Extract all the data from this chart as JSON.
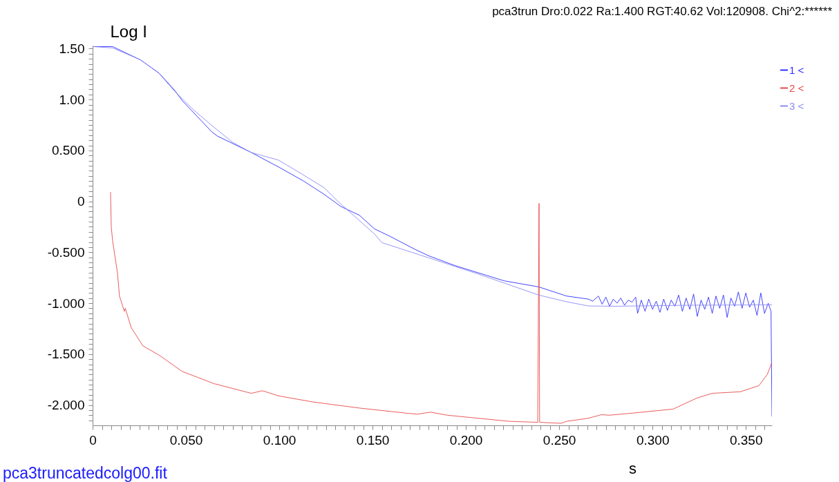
{
  "chart_data": {
    "type": "line",
    "title": "pca3trun  Dro:0.022  Ra:1.400  RGT:40.62  Vol:120908.  Chi^2:******",
    "ylabel": "Log I",
    "xlabel": "s",
    "annotations": [
      "pca3truncatedcolg00.fit"
    ],
    "legend": "top right",
    "grid": false,
    "marker": "none",
    "line_style": "solid",
    "xlim": [
      0,
      0.364
    ],
    "ylim": [
      -2.2,
      1.53
    ],
    "xticks": [
      {
        "value": 0,
        "label": "0"
      },
      {
        "value": 0.005,
        "label": null
      },
      {
        "value": 0.01,
        "label": null
      },
      {
        "value": 0.015,
        "label": null
      },
      {
        "value": 0.02,
        "label": null
      },
      {
        "value": 0.025,
        "label": null
      },
      {
        "value": 0.03,
        "label": null
      },
      {
        "value": 0.035,
        "label": null
      },
      {
        "value": 0.04,
        "label": null
      },
      {
        "value": 0.045,
        "label": null
      },
      {
        "value": 0.05,
        "label": "0.050"
      },
      {
        "value": 0.055,
        "label": null
      },
      {
        "value": 0.06,
        "label": null
      },
      {
        "value": 0.065,
        "label": null
      },
      {
        "value": 0.07,
        "label": null
      },
      {
        "value": 0.075,
        "label": null
      },
      {
        "value": 0.08,
        "label": null
      },
      {
        "value": 0.085,
        "label": null
      },
      {
        "value": 0.09,
        "label": null
      },
      {
        "value": 0.095,
        "label": null
      },
      {
        "value": 0.1,
        "label": "0.100"
      },
      {
        "value": 0.105,
        "label": null
      },
      {
        "value": 0.11,
        "label": null
      },
      {
        "value": 0.115,
        "label": null
      },
      {
        "value": 0.12,
        "label": null
      },
      {
        "value": 0.125,
        "label": null
      },
      {
        "value": 0.13,
        "label": null
      },
      {
        "value": 0.135,
        "label": null
      },
      {
        "value": 0.14,
        "label": null
      },
      {
        "value": 0.145,
        "label": null
      },
      {
        "value": 0.15,
        "label": "0.150"
      },
      {
        "value": 0.155,
        "label": null
      },
      {
        "value": 0.16,
        "label": null
      },
      {
        "value": 0.165,
        "label": null
      },
      {
        "value": 0.17,
        "label": null
      },
      {
        "value": 0.175,
        "label": null
      },
      {
        "value": 0.18,
        "label": null
      },
      {
        "value": 0.185,
        "label": null
      },
      {
        "value": 0.19,
        "label": null
      },
      {
        "value": 0.195,
        "label": null
      },
      {
        "value": 0.2,
        "label": "0.200"
      },
      {
        "value": 0.205,
        "label": null
      },
      {
        "value": 0.21,
        "label": null
      },
      {
        "value": 0.215,
        "label": null
      },
      {
        "value": 0.22,
        "label": null
      },
      {
        "value": 0.225,
        "label": null
      },
      {
        "value": 0.23,
        "label": null
      },
      {
        "value": 0.235,
        "label": null
      },
      {
        "value": 0.24,
        "label": null
      },
      {
        "value": 0.245,
        "label": null
      },
      {
        "value": 0.25,
        "label": "0.250"
      },
      {
        "value": 0.255,
        "label": null
      },
      {
        "value": 0.26,
        "label": null
      },
      {
        "value": 0.265,
        "label": null
      },
      {
        "value": 0.27,
        "label": null
      },
      {
        "value": 0.275,
        "label": null
      },
      {
        "value": 0.28,
        "label": null
      },
      {
        "value": 0.285,
        "label": null
      },
      {
        "value": 0.29,
        "label": null
      },
      {
        "value": 0.295,
        "label": null
      },
      {
        "value": 0.3,
        "label": "0.300"
      },
      {
        "value": 0.305,
        "label": null
      },
      {
        "value": 0.31,
        "label": null
      },
      {
        "value": 0.315,
        "label": null
      },
      {
        "value": 0.32,
        "label": null
      },
      {
        "value": 0.325,
        "label": null
      },
      {
        "value": 0.33,
        "label": null
      },
      {
        "value": 0.335,
        "label": null
      },
      {
        "value": 0.34,
        "label": null
      },
      {
        "value": 0.345,
        "label": null
      },
      {
        "value": 0.35,
        "label": "0.350"
      },
      {
        "value": 0.355,
        "label": null
      },
      {
        "value": 0.36,
        "label": null
      }
    ],
    "yticks": [
      {
        "value": 1.5,
        "label": "1.50"
      },
      {
        "value": 1.45,
        "label": null
      },
      {
        "value": 1.4,
        "label": null
      },
      {
        "value": 1.35,
        "label": null
      },
      {
        "value": 1.3,
        "label": null
      },
      {
        "value": 1.25,
        "label": null
      },
      {
        "value": 1.2,
        "label": null
      },
      {
        "value": 1.15,
        "label": null
      },
      {
        "value": 1.1,
        "label": null
      },
      {
        "value": 1.05,
        "label": null
      },
      {
        "value": 1,
        "label": "1.00"
      },
      {
        "value": 0.95,
        "label": null
      },
      {
        "value": 0.9,
        "label": null
      },
      {
        "value": 0.85,
        "label": null
      },
      {
        "value": 0.8,
        "label": null
      },
      {
        "value": 0.75,
        "label": null
      },
      {
        "value": 0.7,
        "label": null
      },
      {
        "value": 0.65,
        "label": null
      },
      {
        "value": 0.6,
        "label": null
      },
      {
        "value": 0.55,
        "label": null
      },
      {
        "value": 0.5,
        "label": "0.500"
      },
      {
        "value": 0.45,
        "label": null
      },
      {
        "value": 0.4,
        "label": null
      },
      {
        "value": 0.35,
        "label": null
      },
      {
        "value": 0.3,
        "label": null
      },
      {
        "value": 0.25,
        "label": null
      },
      {
        "value": 0.2,
        "label": null
      },
      {
        "value": 0.15,
        "label": null
      },
      {
        "value": 0.1,
        "label": null
      },
      {
        "value": 0.05,
        "label": null
      },
      {
        "value": 0,
        "label": "0"
      },
      {
        "value": -0.05,
        "label": null
      },
      {
        "value": -0.1,
        "label": null
      },
      {
        "value": -0.15,
        "label": null
      },
      {
        "value": -0.2,
        "label": null
      },
      {
        "value": -0.25,
        "label": null
      },
      {
        "value": -0.3,
        "label": null
      },
      {
        "value": -0.35,
        "label": null
      },
      {
        "value": -0.4,
        "label": null
      },
      {
        "value": -0.45,
        "label": null
      },
      {
        "value": -0.5,
        "label": "-0.500"
      },
      {
        "value": -0.55,
        "label": null
      },
      {
        "value": -0.6,
        "label": null
      },
      {
        "value": -0.65,
        "label": null
      },
      {
        "value": -0.7,
        "label": null
      },
      {
        "value": -0.75,
        "label": null
      },
      {
        "value": -0.8,
        "label": null
      },
      {
        "value": -0.85,
        "label": null
      },
      {
        "value": -0.9,
        "label": null
      },
      {
        "value": -0.95,
        "label": null
      },
      {
        "value": -1,
        "label": "-1.000"
      },
      {
        "value": -1.05,
        "label": null
      },
      {
        "value": -1.1,
        "label": null
      },
      {
        "value": -1.15,
        "label": null
      },
      {
        "value": -1.2,
        "label": null
      },
      {
        "value": -1.25,
        "label": null
      },
      {
        "value": -1.3,
        "label": null
      },
      {
        "value": -1.35,
        "label": null
      },
      {
        "value": -1.4,
        "label": null
      },
      {
        "value": -1.45,
        "label": null
      },
      {
        "value": -1.5,
        "label": "-1.500"
      },
      {
        "value": -1.55,
        "label": null
      },
      {
        "value": -1.6,
        "label": null
      },
      {
        "value": -1.65,
        "label": null
      },
      {
        "value": -1.7,
        "label": null
      },
      {
        "value": -1.75,
        "label": null
      },
      {
        "value": -1.8,
        "label": null
      },
      {
        "value": -1.85,
        "label": null
      },
      {
        "value": -1.9,
        "label": null
      },
      {
        "value": -1.95,
        "label": null
      },
      {
        "value": -2,
        "label": "-2.000"
      },
      {
        "value": -2.05,
        "label": null
      },
      {
        "value": -2.1,
        "label": null
      },
      {
        "value": -2.15,
        "label": null
      }
    ],
    "series": [
      {
        "name": "1 <",
        "color": "#2f2fff",
        "x": [
          0,
          0.0107,
          0.0256,
          0.0356,
          0.044,
          0.048,
          0.064,
          0.067,
          0.085,
          0.0996,
          0.113,
          0.124,
          0.133,
          0.143,
          0.151,
          0.159,
          0.1726,
          0.18,
          0.194,
          0.2204,
          0.239,
          0.254,
          0.2656,
          0.268,
          0.271,
          0.273,
          0.275,
          0.277,
          0.279,
          0.281,
          0.283,
          0.285,
          0.287,
          0.289,
          0.291,
          0.292,
          0.294,
          0.296,
          0.298,
          0.3,
          0.302,
          0.304,
          0.306,
          0.308,
          0.31,
          0.312,
          0.314,
          0.316,
          0.318,
          0.32,
          0.322,
          0.324,
          0.326,
          0.328,
          0.33,
          0.332,
          0.334,
          0.336,
          0.338,
          0.34,
          0.342,
          0.344,
          0.346,
          0.348,
          0.35,
          0.352,
          0.354,
          0.356,
          0.358,
          0.36,
          0.362,
          0.3635,
          0.364
        ],
        "values": [
          1.52,
          1.52,
          1.39,
          1.26,
          1.09,
          0.99,
          0.68,
          0.64,
          0.48,
          0.338,
          0.2,
          0.07,
          -0.05,
          -0.137,
          -0.27,
          -0.34,
          -0.47,
          -0.534,
          -0.63,
          -0.78,
          -0.84,
          -0.93,
          -0.96,
          -0.98,
          -0.93,
          -1.01,
          -0.94,
          -1.03,
          -0.96,
          -1.0,
          -0.95,
          -1.02,
          -0.97,
          -0.99,
          -0.94,
          -1.1,
          -0.97,
          -1.08,
          -0.96,
          -1.06,
          -0.98,
          -1.09,
          -0.96,
          -1.07,
          -0.97,
          -1.03,
          -0.92,
          -1.08,
          -0.95,
          -1.06,
          -0.91,
          -1.13,
          -0.97,
          -1.06,
          -0.94,
          -1.1,
          -0.93,
          -1.05,
          -0.92,
          -1.14,
          -0.95,
          -1.03,
          -0.89,
          -1.05,
          -0.9,
          -1.04,
          -0.97,
          -1.12,
          -0.9,
          -1.1,
          -1.0,
          -1.08,
          -2.11
        ]
      },
      {
        "name": "2 <",
        "color": "#e84848",
        "x": [
          0.0096,
          0.01,
          0.0107,
          0.0133,
          0.0144,
          0.017,
          0.0175,
          0.0207,
          0.027,
          0.0356,
          0.048,
          0.065,
          0.085,
          0.091,
          0.0996,
          0.118,
          0.143,
          0.168,
          0.174,
          0.181,
          0.19,
          0.223,
          0.2385,
          0.2392,
          0.2395,
          0.251,
          0.254,
          0.2656,
          0.2726,
          0.277,
          0.289,
          0.311,
          0.324,
          0.332,
          0.347,
          0.357,
          0.3615,
          0.364
        ],
        "values": [
          0.088,
          -0.25,
          -0.385,
          -0.7,
          -0.93,
          -1.08,
          -1.05,
          -1.24,
          -1.42,
          -1.51,
          -1.67,
          -1.79,
          -1.885,
          -1.86,
          -1.91,
          -1.97,
          -2.03,
          -2.08,
          -2.09,
          -2.07,
          -2.1,
          -2.16,
          -2.17,
          -0.02,
          -2.17,
          -2.18,
          -2.16,
          -2.13,
          -2.095,
          -2.1,
          -2.08,
          -2.04,
          -1.93,
          -1.885,
          -1.87,
          -1.81,
          -1.7,
          -1.58
        ]
      },
      {
        "name": "3 <",
        "color": "#8a8af5",
        "x": [
          0,
          0.0107,
          0.0256,
          0.0356,
          0.044,
          0.054,
          0.064,
          0.075,
          0.085,
          0.0996,
          0.112,
          0.124,
          0.132,
          0.151,
          0.155,
          0.1726,
          0.18,
          0.206,
          0.239,
          0.254,
          0.2656,
          0.28,
          0.32,
          0.364
        ],
        "values": [
          1.52,
          1.507,
          1.39,
          1.257,
          1.08,
          0.9,
          0.743,
          0.58,
          0.48,
          0.405,
          0.27,
          0.135,
          -0.01,
          -0.32,
          -0.405,
          -0.51,
          -0.554,
          -0.71,
          -0.92,
          -0.986,
          -1.027,
          -1.03,
          -1.02,
          -1.016
        ]
      }
    ]
  }
}
